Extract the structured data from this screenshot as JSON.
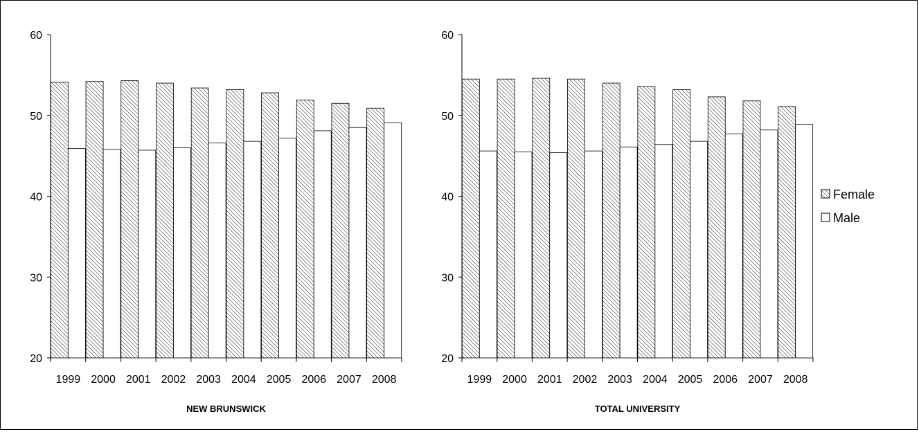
{
  "chart_data": [
    {
      "type": "bar",
      "title": "NEW BRUNSWICK",
      "categories": [
        "1999",
        "2000",
        "2001",
        "2002",
        "2003",
        "2004",
        "2005",
        "2006",
        "2007",
        "2008"
      ],
      "series": [
        {
          "name": "Female",
          "values": [
            54.1,
            54.2,
            54.3,
            54.0,
            53.4,
            53.2,
            52.8,
            51.9,
            51.5,
            50.9
          ]
        },
        {
          "name": "Male",
          "values": [
            45.9,
            45.8,
            45.7,
            46.0,
            46.6,
            46.8,
            47.2,
            48.1,
            48.5,
            49.1
          ]
        }
      ],
      "yticks": [
        "20",
        "30",
        "40",
        "50",
        "60"
      ],
      "ylim": [
        20,
        60
      ],
      "grid": false
    },
    {
      "type": "bar",
      "title": "TOTAL UNIVERSITY",
      "categories": [
        "1999",
        "2000",
        "2001",
        "2002",
        "2003",
        "2004",
        "2005",
        "2006",
        "2007",
        "2008"
      ],
      "series": [
        {
          "name": "Female",
          "values": [
            54.5,
            54.5,
            54.6,
            54.5,
            54.0,
            53.6,
            53.2,
            52.3,
            51.8,
            51.1
          ]
        },
        {
          "name": "Male",
          "values": [
            45.6,
            45.5,
            45.4,
            45.6,
            46.1,
            46.4,
            46.8,
            47.7,
            48.2,
            48.9
          ]
        }
      ],
      "yticks": [
        "20",
        "30",
        "40",
        "50",
        "60"
      ],
      "ylim": [
        20,
        60
      ],
      "grid": false
    }
  ],
  "legend": {
    "position": "right",
    "items": [
      {
        "label": "Female",
        "pattern": "hatched"
      },
      {
        "label": "Male",
        "pattern": "white"
      }
    ]
  }
}
